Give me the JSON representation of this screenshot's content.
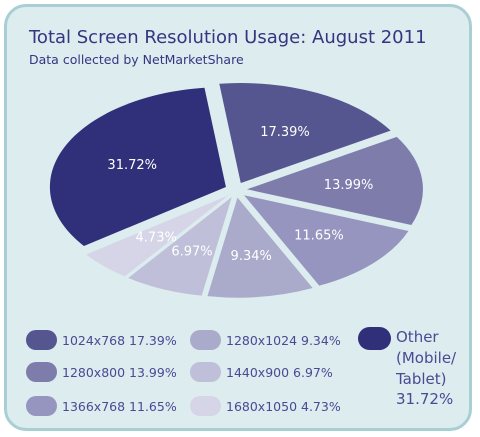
{
  "title": "Total Screen Resolution Usage: August 2011",
  "subtitle": "Data collected by NetMarketShare",
  "colors": {
    "background": "#dcecef",
    "border": "#a9cfd3",
    "text": "#353580"
  },
  "chart_data": {
    "type": "pie",
    "title": "Total Screen Resolution Usage: August 2011",
    "subtitle": "Data collected by NetMarketShare",
    "slices": [
      {
        "label": "Other (Mobile/ Tablet)",
        "value": 31.72,
        "display": "31.72%",
        "color": "#2f2f7a"
      },
      {
        "label": "1024x768",
        "value": 17.39,
        "display": "17.39%",
        "color": "#55558f"
      },
      {
        "label": "1280x800",
        "value": 13.99,
        "display": "13.99%",
        "color": "#7d7cab"
      },
      {
        "label": "1366x768",
        "value": 11.65,
        "display": "11.65%",
        "color": "#9595bf"
      },
      {
        "label": "1280x1024",
        "value": 9.34,
        "display": "9.34%",
        "color": "#aaaacb"
      },
      {
        "label": "1440x900",
        "value": 6.97,
        "display": "6.97%",
        "color": "#bfbfd9"
      },
      {
        "label": "1680x1050",
        "value": 4.73,
        "display": "4.73%",
        "color": "#d5d5e7"
      }
    ],
    "legend_position": "bottom"
  },
  "legend": {
    "col1": [
      {
        "text": "1024x768   17.39%",
        "color": "#55558f"
      },
      {
        "text": "1280x800   13.99%",
        "color": "#7d7cab"
      },
      {
        "text": "1366x768   11.65%",
        "color": "#9595bf"
      }
    ],
    "col2": [
      {
        "text": "1280x1024   9.34%",
        "color": "#aaaacb"
      },
      {
        "text": "1440x900   6.97%",
        "color": "#bfbfd9"
      },
      {
        "text": "1680x1050   4.73%",
        "color": "#d5d5e7"
      }
    ],
    "other": {
      "line1": "Other",
      "line2": "(Mobile/",
      "line3": "Tablet)",
      "value": "31.72%",
      "color": "#2f2f7a"
    }
  }
}
